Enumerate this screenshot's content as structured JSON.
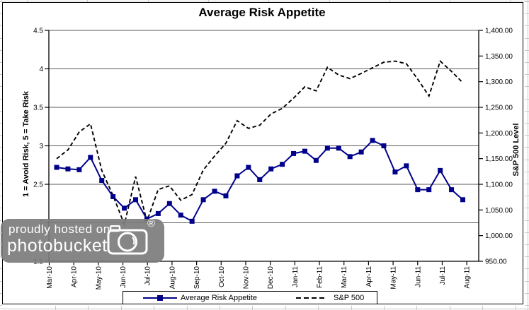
{
  "chart_data": {
    "type": "line",
    "title": "Average Risk Appetite",
    "x_categories": [
      "Mar-10",
      "Apr-10",
      "May-10",
      "Jun-10",
      "Jul-10",
      "Aug-10",
      "Sep-10",
      "Oct-10",
      "Nov-10",
      "Dec-10",
      "Jan-11",
      "Feb-11",
      "Mar-11",
      "Apr-11",
      "May-11",
      "Jun-11",
      "Jul-11",
      "Aug-11"
    ],
    "left_axis": {
      "title": "1 = Avoid Risk, 5 = Take Risk",
      "min": 1.5,
      "max": 4.5,
      "tick_step": 0.5,
      "tick_labels": [
        "4.5",
        "4",
        "3.5",
        "3",
        "2.5",
        "2",
        "1.5"
      ]
    },
    "right_axis": {
      "title": "S&P 500 Level",
      "min": 950,
      "max": 1400,
      "tick_step": 50,
      "tick_labels": [
        "1,400.00",
        "1,350.00",
        "1,300.00",
        "1,250.00",
        "1,200.00",
        "1,150.00",
        "1,100.00",
        "1,050.00",
        "1,000.00",
        "950.00"
      ]
    },
    "grid": "horizontal",
    "legend_position": "bottom",
    "sampling": "approx. twice per month",
    "series": [
      {
        "name": "Average Risk Appetite",
        "axis": "left",
        "line_style": "solid",
        "marker": "square",
        "color": "#00008B",
        "values": [
          2.72,
          2.7,
          2.69,
          2.85,
          2.55,
          2.34,
          2.19,
          2.3,
          2.05,
          2.12,
          2.25,
          2.1,
          2.02,
          2.3,
          2.41,
          2.35,
          2.61,
          2.72,
          2.56,
          2.7,
          2.76,
          2.9,
          2.93,
          2.81,
          2.97,
          2.97,
          2.86,
          2.92,
          3.07,
          3.0,
          2.66,
          2.74,
          2.43,
          2.43,
          2.68,
          2.43,
          2.3
        ]
      },
      {
        "name": "S&P 500",
        "axis": "right",
        "line_style": "dashed",
        "marker": "none",
        "color": "#000000",
        "values": [
          1150,
          1167,
          1202,
          1218,
          1127,
          1078,
          1022,
          1115,
          1028,
          1090,
          1097,
          1069,
          1080,
          1128,
          1155,
          1180,
          1224,
          1209,
          1215,
          1237,
          1248,
          1268,
          1290,
          1282,
          1328,
          1313,
          1306,
          1316,
          1327,
          1338,
          1340,
          1335,
          1305,
          1272,
          1340,
          1320,
          1298
        ]
      }
    ]
  },
  "watermark": {
    "line1": "proudly hosted on",
    "line2": "photobucket",
    "registered_mark": "®",
    "icon": "camera-icon"
  }
}
